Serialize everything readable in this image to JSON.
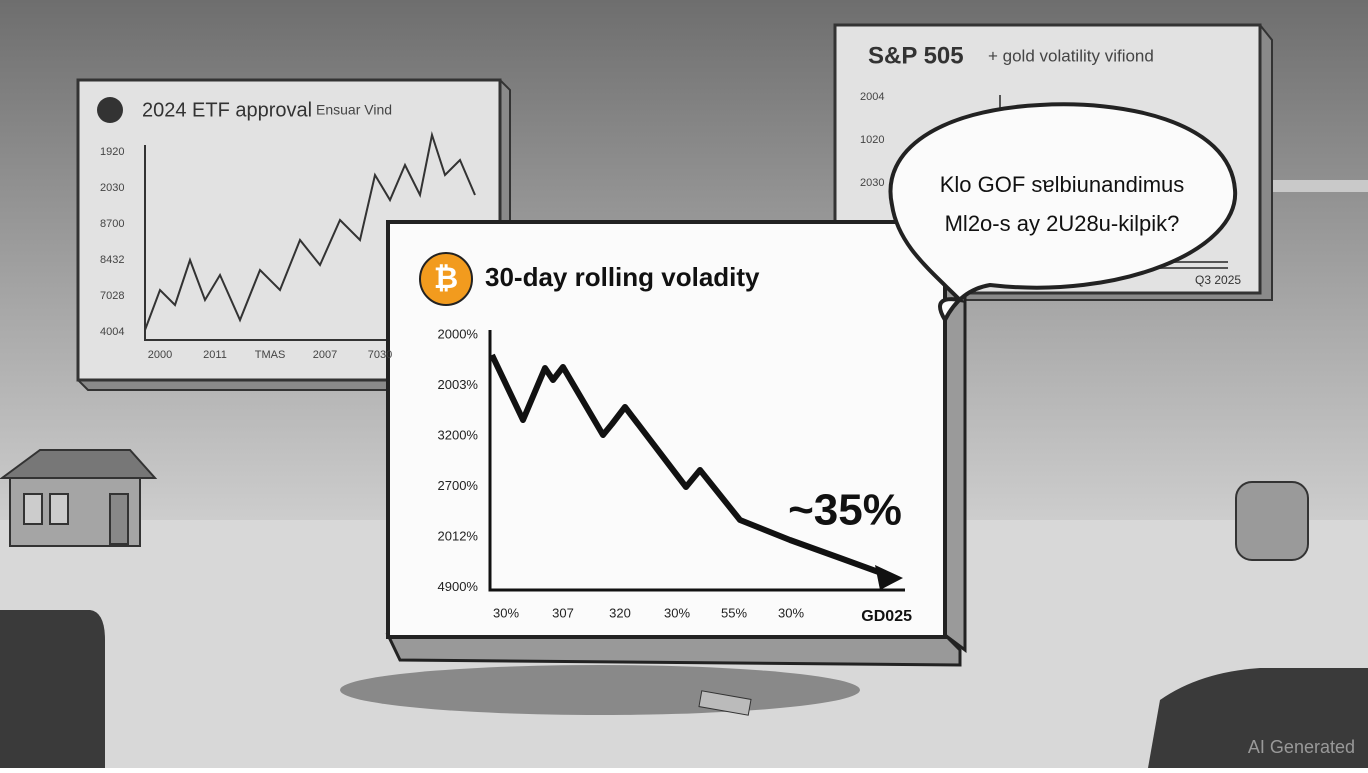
{
  "back_left_panel": {
    "title": "2024 ETF approval",
    "subtitle": "Ensuar Vind",
    "y_labels": [
      "1920",
      "2030",
      "8700",
      "8432",
      "7028",
      "4004"
    ],
    "x_labels": [
      "2000",
      "2011",
      "TMAS",
      "2007",
      "7030"
    ]
  },
  "back_right_panel": {
    "title": "S&P 505",
    "subtitle": "+ gold volatility vifiond",
    "y_labels": [
      "2004",
      "1020",
      "2030"
    ],
    "x_label": "Q3 2025"
  },
  "speech_bubble": {
    "lines": [
      "Klo GOF sɐlbiunandimus",
      "Ml2o-s ay 2U28u-kilpik?"
    ]
  },
  "main_panel": {
    "title": "30-day rolling voladity",
    "y_labels": [
      "2000%",
      "2003%",
      "3200%",
      "2700%",
      "2012%",
      "4900%"
    ],
    "x_labels": [
      "30%",
      "307",
      "320",
      "30%",
      "55%",
      "30%"
    ],
    "x_end_label": "GD025",
    "annotation": "~35%"
  },
  "watermark": "AI Generated"
}
